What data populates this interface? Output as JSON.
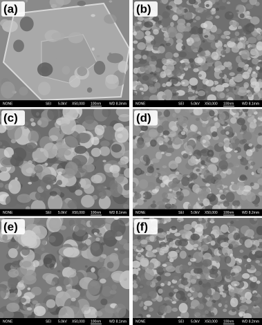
{
  "panels": [
    {
      "label": "(a)",
      "footer": {
        "detector": "NONE",
        "mode": "SEI",
        "voltage": "5.0kV",
        "magnification": "X50,000",
        "scale": "100nm",
        "working_distance": "WD 8.3mm"
      }
    },
    {
      "label": "(b)",
      "footer": {
        "detector": "NONE",
        "mode": "SEI",
        "voltage": "5.0kV",
        "magnification": "X50,000",
        "scale": "100nm",
        "working_distance": "WD 8.1mm"
      }
    },
    {
      "label": "(c)",
      "footer": {
        "detector": "NONE",
        "mode": "SEI",
        "voltage": "5.0kV",
        "magnification": "X50,000",
        "scale": "100nm",
        "working_distance": "WD 8.1mm"
      }
    },
    {
      "label": "(d)",
      "footer": {
        "detector": "NONE",
        "mode": "SEI",
        "voltage": "5.0kV",
        "magnification": "X50,000",
        "scale": "100nm",
        "working_distance": "WD 8.2mm"
      }
    },
    {
      "label": "(e)",
      "footer": {
        "detector": "NONE",
        "mode": "SEI",
        "voltage": "5.0kV",
        "magnification": "X50,000",
        "scale": "100nm",
        "working_distance": "WD 8.1mm"
      }
    },
    {
      "label": "(f)",
      "footer": {
        "detector": "NONE",
        "mode": "SEI",
        "voltage": "5.0kV",
        "magnification": "X50,000",
        "scale": "100nm",
        "working_distance": "WD 8.2mm"
      }
    }
  ]
}
